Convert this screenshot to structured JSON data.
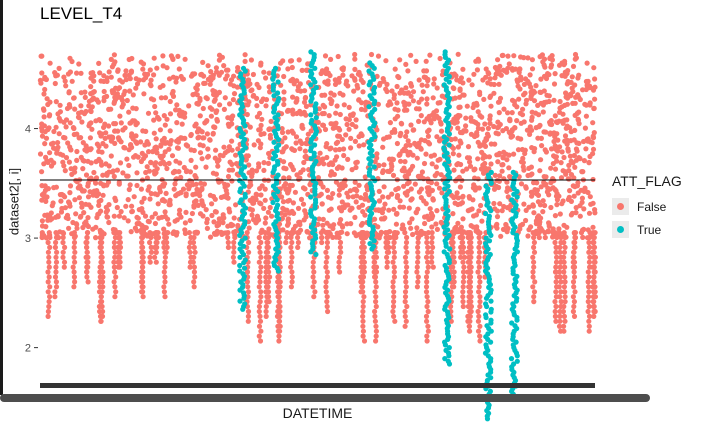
{
  "chart_data": {
    "type": "scatter",
    "title": "LEVEL_T4",
    "xlabel": "DATETIME",
    "ylabel": "dataset2[, i]",
    "ylim": [
      1.75,
      4.9
    ],
    "yticks": [
      2,
      3,
      4
    ],
    "ytick_labels": [
      "2",
      "3",
      "4"
    ],
    "x_tick_labels_visible": false,
    "grid": false,
    "legend_title": "ATT_FLAG",
    "legend_position": "right",
    "series": [
      {
        "name": "False",
        "color": "#F8766D",
        "description_visible_range": [
          1.95,
          4.68
        ],
        "band_y": [
          3.0,
          4.55
        ]
      },
      {
        "name": "True",
        "color": "#00BFC4",
        "segments": [
          {
            "x": 0.365,
            "y_low": 2.35,
            "y_high": 4.55
          },
          {
            "x": 0.425,
            "y_low": 2.7,
            "y_high": 4.55
          },
          {
            "x": 0.493,
            "y_low": 2.85,
            "y_high": 4.7
          },
          {
            "x": 0.598,
            "y_low": 2.9,
            "y_high": 4.6
          },
          {
            "x": 0.733,
            "y_low": 1.85,
            "y_high": 4.7
          },
          {
            "x": 0.808,
            "y_low": 1.35,
            "y_high": 3.6
          },
          {
            "x": 0.855,
            "y_low": 1.55,
            "y_high": 3.6
          }
        ]
      }
    ],
    "hline": {
      "y": 3.53,
      "color": "#000000"
    }
  }
}
